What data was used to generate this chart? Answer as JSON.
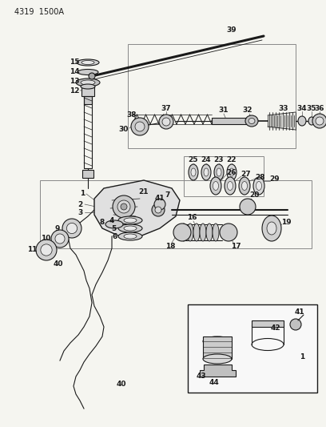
{
  "title": "4319 1500A",
  "bg": "#f5f5f0",
  "fg": "#1a1a1a",
  "fig_w": 4.08,
  "fig_h": 5.33,
  "dpi": 100,
  "label_fs": 6.5
}
